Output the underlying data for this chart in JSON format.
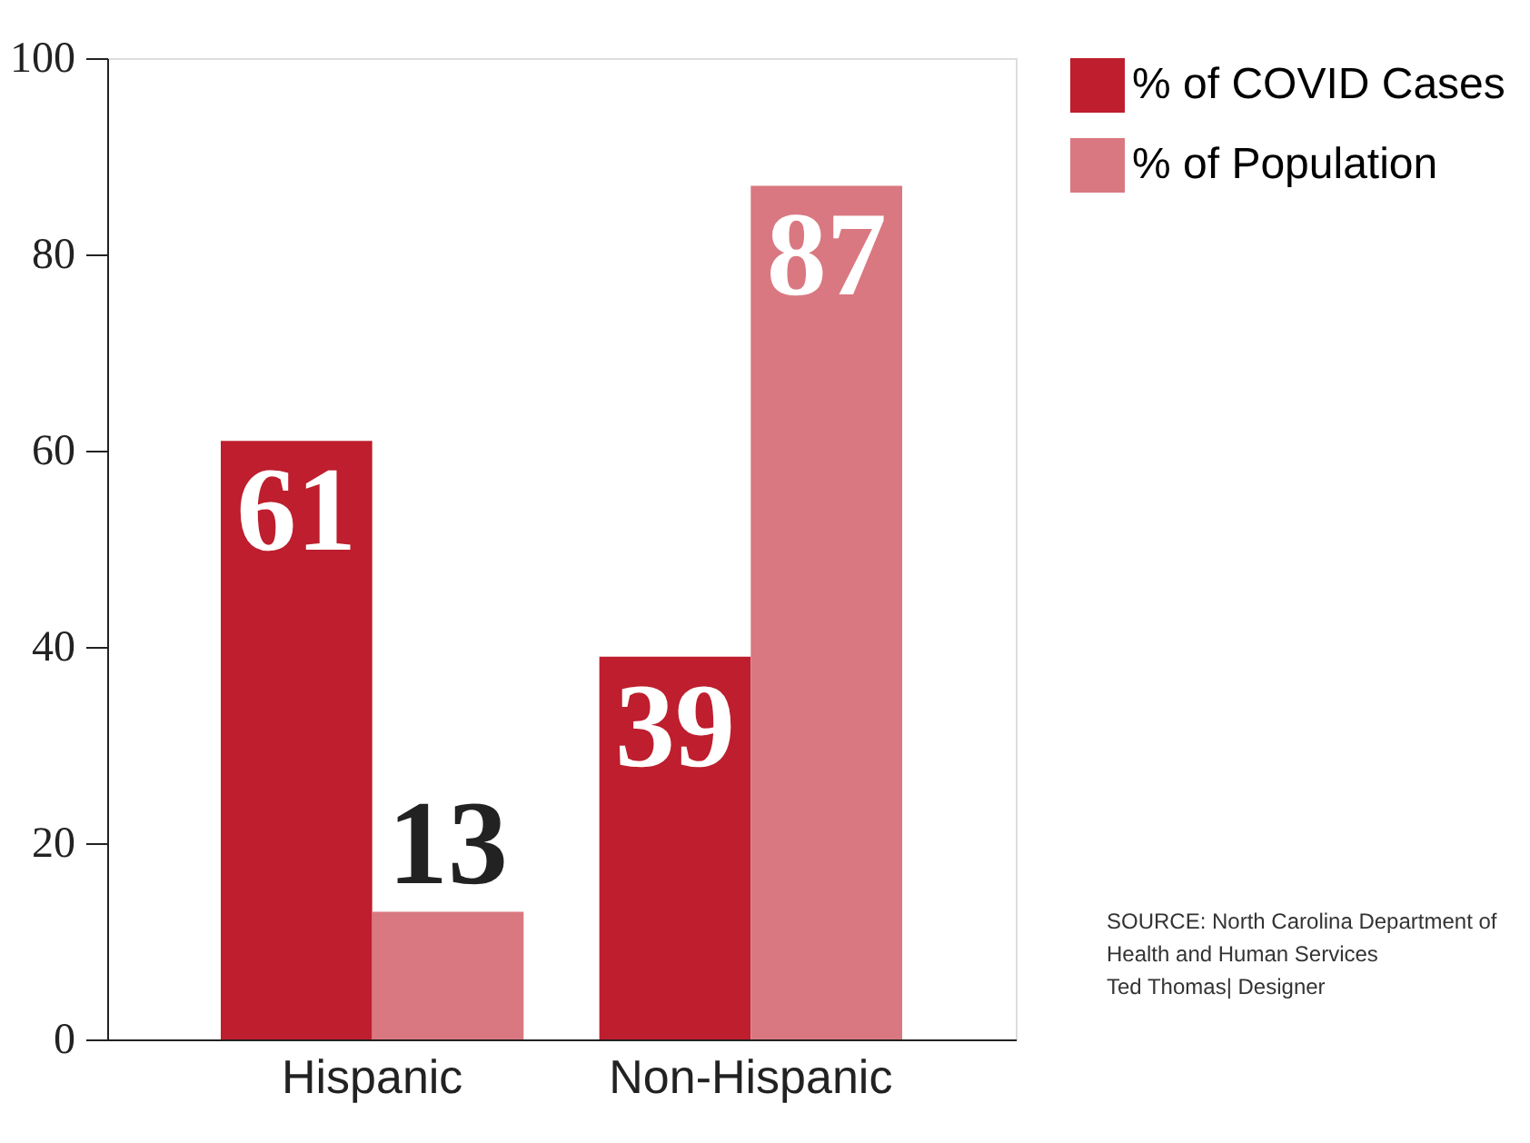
{
  "chart_data": {
    "type": "bar",
    "categories": [
      "Hispanic",
      "Non-Hispanic"
    ],
    "series": [
      {
        "name": "% of COVID Cases",
        "color": "#be1e2d",
        "values": [
          61,
          39
        ]
      },
      {
        "name": "% of Population",
        "color": "#d97880",
        "values": [
          13,
          87
        ]
      }
    ],
    "ylim": [
      0,
      100
    ],
    "yticks": [
      0,
      20,
      40,
      60,
      80,
      100
    ],
    "grid": false,
    "legend": "right",
    "data_labels": true,
    "annotations": [
      "SOURCE: North Carolina Department of Health and Human Services",
      "Ted Thomas| Designer"
    ]
  }
}
